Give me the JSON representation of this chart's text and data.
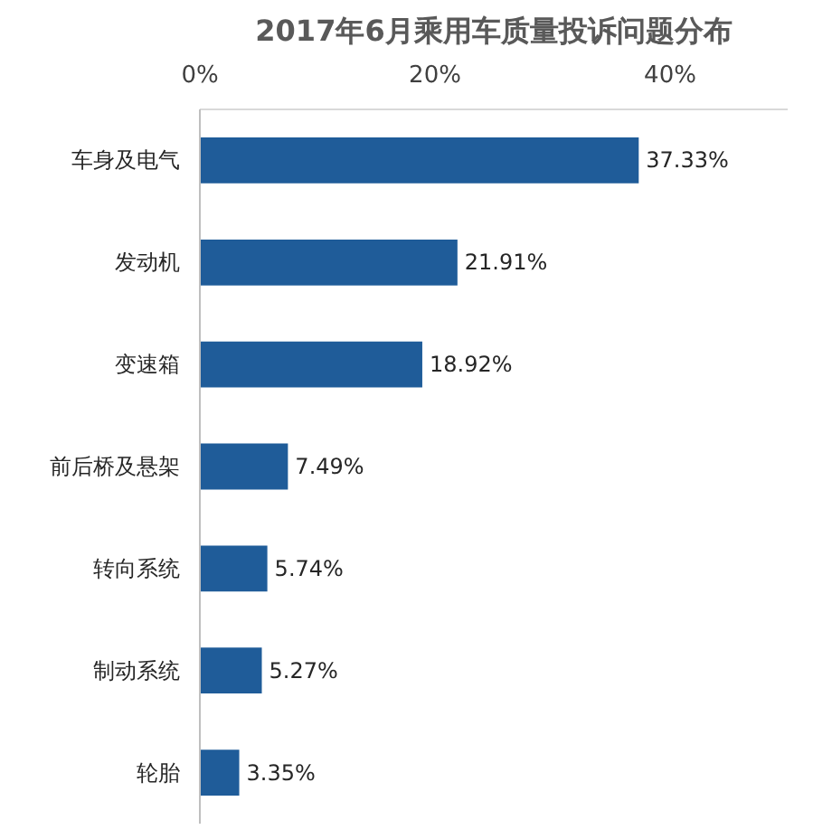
{
  "chart_data": {
    "type": "bar",
    "orientation": "horizontal",
    "title": "2017年6月乘用车质量投诉问题分布",
    "categories": [
      "车身及电气",
      "发动机",
      "变速箱",
      "前后桥及悬架",
      "转向系统",
      "制动系统",
      "轮胎"
    ],
    "values": [
      37.33,
      21.91,
      18.92,
      7.49,
      5.74,
      5.27,
      3.35
    ],
    "value_labels": [
      "37.33%",
      "21.91%",
      "18.92%",
      "7.49%",
      "5.74%",
      "5.27%",
      "3.35%"
    ],
    "color": "#1f5c99",
    "xlim": [
      0,
      50
    ],
    "xticks": [
      {
        "value": 0,
        "label": "0%"
      },
      {
        "value": 20,
        "label": "20%"
      },
      {
        "value": 40,
        "label": "40%"
      }
    ],
    "grid": false
  }
}
